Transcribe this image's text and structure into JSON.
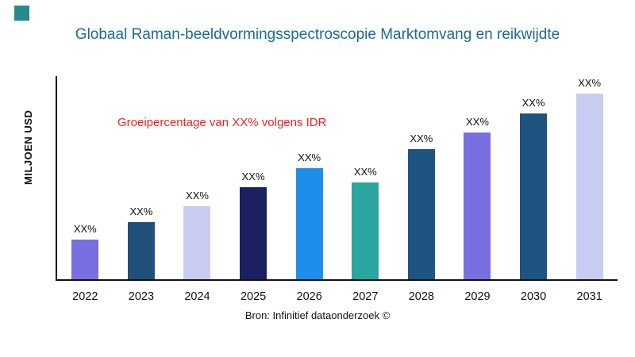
{
  "header": {
    "title": "Globaal Raman-beeldvormingsspectroscopie Marktomvang en reikwijdte",
    "title_color": "#1b6b93",
    "corner_square_color": "#258b8b"
  },
  "chart_data": {
    "type": "bar",
    "title": "Globaal Raman-beeldvormingsspectroscopie Marktomvang en reikwijdte",
    "xlabel": "",
    "ylabel": "MILJOEN USD",
    "categories": [
      "2022",
      "2023",
      "2024",
      "2025",
      "2026",
      "2027",
      "2028",
      "2029",
      "2030",
      "2031"
    ],
    "values": [
      50,
      72,
      92,
      116,
      140,
      122,
      164,
      185,
      209,
      234
    ],
    "note": "no numeric y-axis shown; values are relative bar heights, each bar labeled XX%",
    "bar_value_labels": [
      "XX%",
      "XX%",
      "XX%",
      "XX%",
      "XX%",
      "XX%",
      "XX%",
      "XX%",
      "XX%",
      "XX%"
    ],
    "bar_colors": [
      "#7a6fe0",
      "#20517a",
      "#c7ccf0",
      "#1b2060",
      "#1e8fe8",
      "#2aa5a0",
      "#1f5380",
      "#7a6fe0",
      "#1f5380",
      "#c7ccf0"
    ],
    "ylim": [
      0,
      256
    ],
    "grid": false,
    "legend": false,
    "annotation": {
      "text": "Groeipercentage van XX% volgens IDR",
      "color": "#fb1f1f"
    }
  },
  "footer": {
    "source": "Bron: Infinitief dataonderzoek ©"
  }
}
